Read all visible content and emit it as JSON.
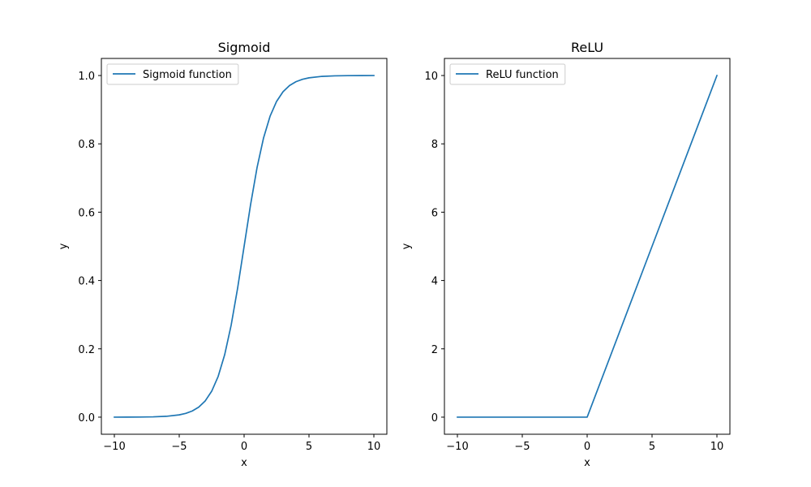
{
  "chart_data": [
    {
      "type": "line",
      "title": "Sigmoid",
      "xlabel": "x",
      "ylabel": "y",
      "xlim": [
        -11,
        11
      ],
      "ylim": [
        -0.05,
        1.05
      ],
      "xticks": [
        -10,
        -5,
        0,
        5,
        10
      ],
      "xtick_labels": [
        "−10",
        "−5",
        "0",
        "5",
        "10"
      ],
      "yticks": [
        0.0,
        0.2,
        0.4,
        0.6,
        0.8,
        1.0
      ],
      "ytick_labels": [
        "0.0",
        "0.2",
        "0.4",
        "0.6",
        "0.8",
        "1.0"
      ],
      "grid": false,
      "legend_position": "top-left",
      "series": [
        {
          "name": "Sigmoid function",
          "color": "#1f77b4",
          "x": [
            -10,
            -9,
            -8,
            -7,
            -6,
            -5,
            -4.5,
            -4,
            -3.5,
            -3,
            -2.5,
            -2,
            -1.5,
            -1,
            -0.5,
            0,
            0.5,
            1,
            1.5,
            2,
            2.5,
            3,
            3.5,
            4,
            4.5,
            5,
            6,
            7,
            8,
            9,
            10
          ],
          "y": [
            4.54e-05,
            0.0001234,
            0.0003354,
            0.000911,
            0.002473,
            0.006693,
            0.010987,
            0.017986,
            0.029312,
            0.047426,
            0.075858,
            0.119203,
            0.182426,
            0.268941,
            0.377541,
            0.5,
            0.622459,
            0.731059,
            0.817574,
            0.880797,
            0.924142,
            0.952574,
            0.970688,
            0.982014,
            0.989013,
            0.993307,
            0.997527,
            0.999089,
            0.999665,
            0.999877,
            0.999955
          ]
        }
      ]
    },
    {
      "type": "line",
      "title": "ReLU",
      "xlabel": "x",
      "ylabel": "y",
      "xlim": [
        -11,
        11
      ],
      "ylim": [
        -0.5,
        10.5
      ],
      "xticks": [
        -10,
        -5,
        0,
        5,
        10
      ],
      "xtick_labels": [
        "−10",
        "−5",
        "0",
        "5",
        "10"
      ],
      "yticks": [
        0,
        2,
        4,
        6,
        8,
        10
      ],
      "ytick_labels": [
        "0",
        "2",
        "4",
        "6",
        "8",
        "10"
      ],
      "grid": false,
      "legend_position": "top-left",
      "series": [
        {
          "name": "ReLU function",
          "color": "#1f77b4",
          "x": [
            -10,
            -5,
            0,
            5,
            10
          ],
          "y": [
            0,
            0,
            0,
            5,
            10
          ]
        }
      ]
    }
  ]
}
